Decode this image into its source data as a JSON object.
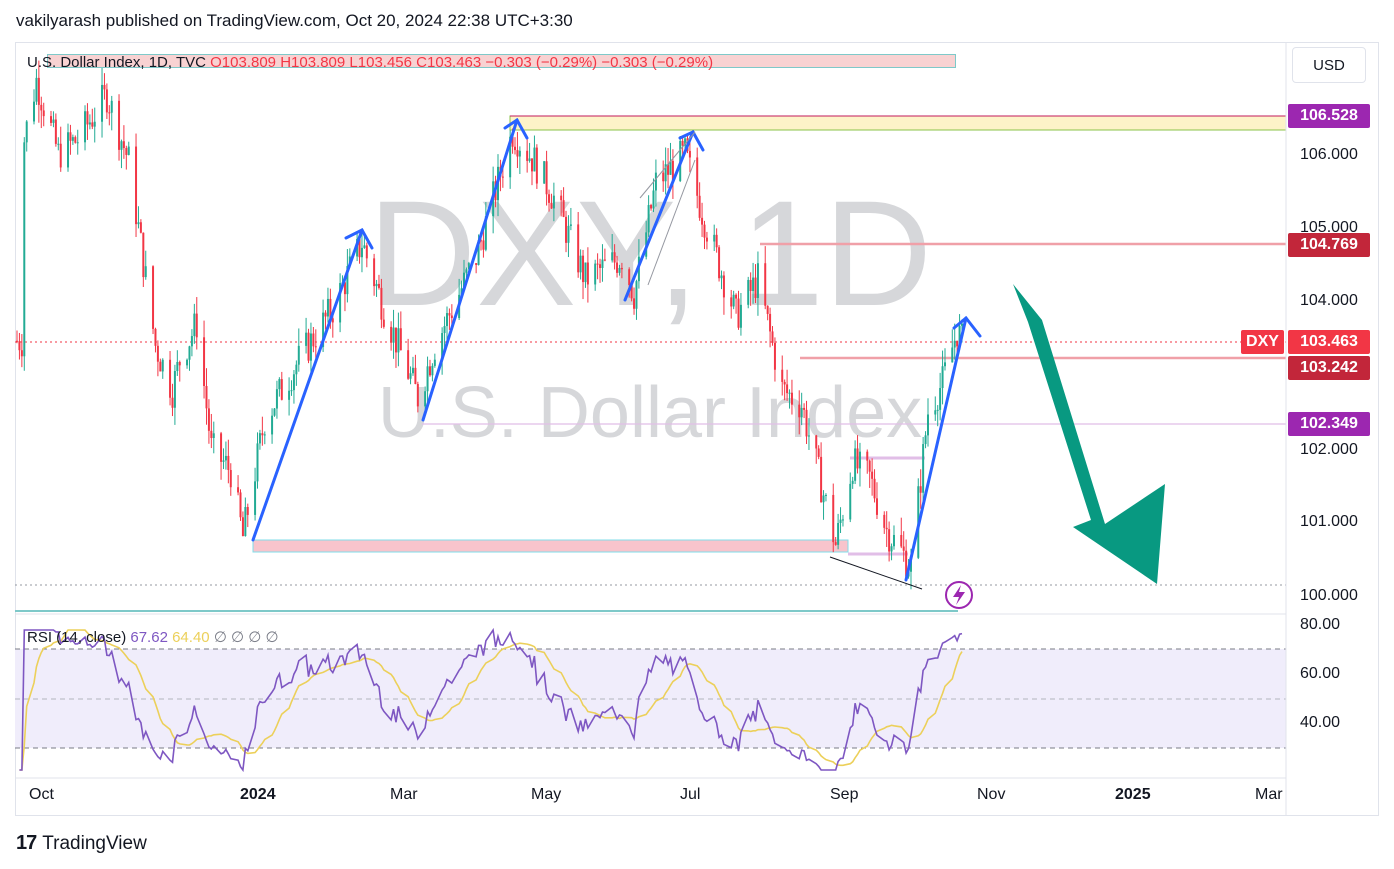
{
  "header": {
    "publisher_line": "vakilyarash published on TradingView.com, Oct 20, 2024 22:38 UTC+3:30"
  },
  "currency_button": "USD",
  "legend": {
    "symbol": "U.S. Dollar Index, 1D, TVC",
    "open": "O103.809",
    "high": "H103.809",
    "low": "L103.456",
    "close": "C103.463",
    "change": "−0.303 (−0.29%)  −0.303 (−0.29%)"
  },
  "watermark": {
    "ticker": "DXY, 1D",
    "name": "U.S. Dollar Index"
  },
  "rsi_legend": {
    "name": "RSI (14, close)",
    "rsi": "67.62",
    "ma": "64.40",
    "extras": "∅ ∅ ∅ ∅"
  },
  "price_tags": {
    "p1": "106.528",
    "p2": "104.769",
    "p3": "103.463",
    "p4": "103.242",
    "p5": "102.349",
    "symbol": "DXY"
  },
  "price_axis": [
    "106.000",
    "105.000",
    "104.000",
    "102.000",
    "101.000",
    "100.000"
  ],
  "rsi_axis": [
    "80.00",
    "60.00",
    "40.00"
  ],
  "months": [
    "Oct",
    "2024",
    "Mar",
    "May",
    "Jul",
    "Sep",
    "Nov",
    "2025",
    "Mar"
  ],
  "footer": {
    "brand": "TradingView"
  },
  "colors": {
    "up": "#22ab94",
    "down": "#f23645",
    "rsi": "#7e57c2",
    "rsi_ma": "#ecd05a",
    "arrow": "#089981",
    "trend": "#2962ff"
  },
  "chart_data": {
    "type": "candlestick",
    "symbol": "DXY",
    "timeframe": "1D",
    "price_range": [
      99.9,
      107.0
    ],
    "levels": [
      106.528,
      104.769,
      103.242,
      102.349
    ],
    "last_price": 103.463,
    "rsi": {
      "period": 14,
      "value": 67.62,
      "ma": 64.4,
      "bands": [
        70,
        50,
        30
      ]
    },
    "series_close": [
      {
        "x": "2023-09-28",
        "y": 106.2
      },
      {
        "x": "2023-10-03",
        "y": 107.0
      },
      {
        "x": "2023-10-12",
        "y": 106.0
      },
      {
        "x": "2023-10-20",
        "y": 106.2
      },
      {
        "x": "2023-11-01",
        "y": 106.8
      },
      {
        "x": "2023-11-10",
        "y": 105.9
      },
      {
        "x": "2023-11-21",
        "y": 103.4
      },
      {
        "x": "2023-11-28",
        "y": 102.8
      },
      {
        "x": "2023-12-01",
        "y": 103.2
      },
      {
        "x": "2023-12-08",
        "y": 103.7
      },
      {
        "x": "2023-12-14",
        "y": 102.0
      },
      {
        "x": "2023-12-22",
        "y": 101.7
      },
      {
        "x": "2023-12-27",
        "y": 100.8
      },
      {
        "x": "2024-01-05",
        "y": 102.4
      },
      {
        "x": "2024-01-19",
        "y": 103.2
      },
      {
        "x": "2024-02-02",
        "y": 103.9
      },
      {
        "x": "2024-02-14",
        "y": 104.8
      },
      {
        "x": "2024-02-23",
        "y": 103.9
      },
      {
        "x": "2024-03-08",
        "y": 102.7
      },
      {
        "x": "2024-03-15",
        "y": 103.4
      },
      {
        "x": "2024-04-01",
        "y": 104.6
      },
      {
        "x": "2024-04-16",
        "y": 106.3
      },
      {
        "x": "2024-04-25",
        "y": 105.9
      },
      {
        "x": "2024-05-03",
        "y": 105.4
      },
      {
        "x": "2024-05-16",
        "y": 104.3
      },
      {
        "x": "2024-05-31",
        "y": 104.6
      },
      {
        "x": "2024-06-05",
        "y": 104.1
      },
      {
        "x": "2024-06-14",
        "y": 105.6
      },
      {
        "x": "2024-06-26",
        "y": 106.0
      },
      {
        "x": "2024-07-05",
        "y": 105.0
      },
      {
        "x": "2024-07-17",
        "y": 103.8
      },
      {
        "x": "2024-07-26",
        "y": 104.3
      },
      {
        "x": "2024-08-05",
        "y": 102.8
      },
      {
        "x": "2024-08-13",
        "y": 102.6
      },
      {
        "x": "2024-08-27",
        "y": 100.7
      },
      {
        "x": "2024-09-03",
        "y": 101.8
      },
      {
        "x": "2024-09-10",
        "y": 101.6
      },
      {
        "x": "2024-09-17",
        "y": 100.9
      },
      {
        "x": "2024-09-27",
        "y": 100.4
      },
      {
        "x": "2024-10-04",
        "y": 102.5
      },
      {
        "x": "2024-10-10",
        "y": 102.9
      },
      {
        "x": "2024-10-16",
        "y": 103.6
      },
      {
        "x": "2024-10-18",
        "y": 103.463
      }
    ]
  }
}
